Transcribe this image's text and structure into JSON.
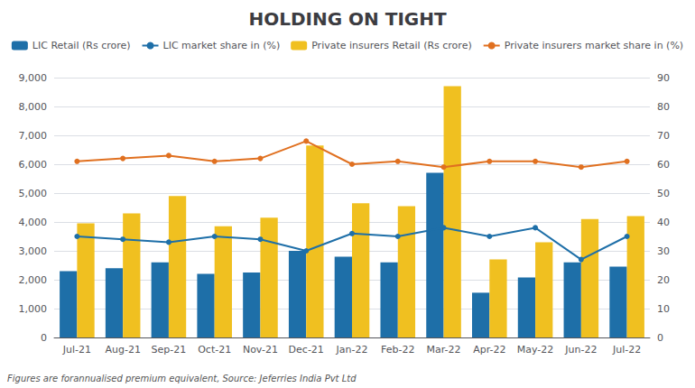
{
  "chart_data": {
    "type": "bar",
    "title": "HOLDING ON TIGHT",
    "annotations": [
      "Figures are forannualised premium equivalent, Source: Jeferries India Pvt Ltd"
    ],
    "categories": [
      "Jul-21",
      "Aug-21",
      "Sep-21",
      "Oct-21",
      "Nov-21",
      "Dec-21",
      "Jan-22",
      "Feb-22",
      "Mar-22",
      "Apr-22",
      "May-22",
      "Jun-22",
      "Jul-22"
    ],
    "series": [
      {
        "name": "LIC Retail (Rs crore)",
        "type": "bar",
        "color": "#1e6fa8",
        "values": [
          2300,
          2400,
          2600,
          2200,
          2250,
          3000,
          2800,
          2600,
          5700,
          1550,
          2080,
          2600,
          2450
        ]
      },
      {
        "name": "LIC market share in (%)",
        "type": "line",
        "axis": "y2",
        "marker": "circle",
        "color": "#1e6fa8",
        "values": [
          35,
          34,
          33,
          35,
          34,
          30,
          36,
          35,
          38,
          35,
          38,
          27,
          35
        ]
      },
      {
        "name": "Private insurers Retail (Rs crore)",
        "type": "bar",
        "color": "#f0c020",
        "values": [
          3950,
          4300,
          4900,
          3850,
          4150,
          6650,
          4650,
          4550,
          8700,
          2700,
          3300,
          4100,
          4200
        ]
      },
      {
        "name": "Private insurers market share in (%)",
        "type": "line",
        "axis": "y2",
        "marker": "circle",
        "color": "#e07020",
        "values": [
          61,
          62,
          63,
          61,
          62,
          68,
          60,
          61,
          59,
          61,
          61,
          59,
          61
        ]
      }
    ],
    "ylim": [
      0,
      9000
    ],
    "yticks": [
      0,
      {
        "value": 1000,
        "label": "1,000"
      },
      {
        "value": 2000,
        "label": "2,000"
      },
      {
        "value": 3000,
        "label": "3,000"
      },
      {
        "value": 4000,
        "label": "4,000"
      },
      {
        "value": 5000,
        "label": "5,000"
      },
      {
        "value": 6000,
        "label": "6,000"
      },
      {
        "value": 7000,
        "label": "7,000"
      },
      {
        "value": 8000,
        "label": "8,000"
      },
      {
        "value": 9000,
        "label": "9,000"
      }
    ],
    "y2lim": [
      0,
      90
    ],
    "y2ticks": [
      0,
      10,
      20,
      30,
      40,
      50,
      60,
      70,
      80,
      90
    ],
    "grid": true,
    "legend": "top"
  }
}
